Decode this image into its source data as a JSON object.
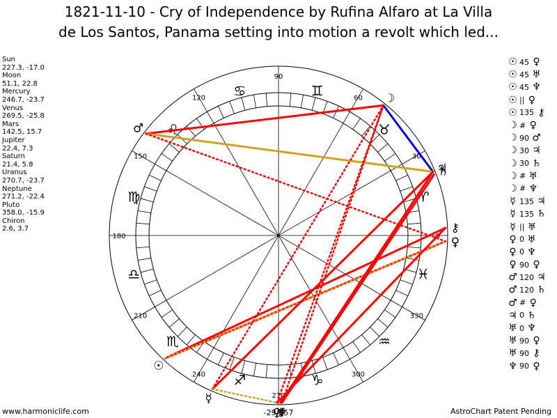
{
  "title": {
    "line1": "1821-11-10 - Cry of Independence by Rufina Alfaro at La Villa",
    "line2": "de Los Santos, Panama setting into motion a revolt which led..."
  },
  "planets": [
    {
      "name": "Sun",
      "values": "227.3, -17.0"
    },
    {
      "name": "Moon",
      "values": "51.1, 22.8"
    },
    {
      "name": "Mercury",
      "values": "246.7, -23.7"
    },
    {
      "name": "Venus",
      "values": "269.5, -25.8"
    },
    {
      "name": "Mars",
      "values": "142.5, 15.7"
    },
    {
      "name": "Jupiter",
      "values": "22.4, 7.3"
    },
    {
      "name": "Saturn",
      "values": "21.4, 5.8"
    },
    {
      "name": "Uranus",
      "values": "270.7, -23.7"
    },
    {
      "name": "Neptune",
      "values": "271.2, -22.4"
    },
    {
      "name": "Pluto",
      "values": "358.0, -15.9"
    },
    {
      "name": "Chiron",
      "values": "2.6, 3.7"
    }
  ],
  "aspects": [
    {
      "a": "☉",
      "v": "45",
      "b": "♀"
    },
    {
      "a": "☉",
      "v": "45",
      "b": "♅"
    },
    {
      "a": "☉",
      "v": "45",
      "b": "♆"
    },
    {
      "a": "☉",
      "v": "||",
      "b": "♀"
    },
    {
      "a": "☉",
      "v": "135",
      "b": "⚷"
    },
    {
      "a": "☽",
      "v": "#",
      "b": "♀"
    },
    {
      "a": "☽",
      "v": "90",
      "b": "♂"
    },
    {
      "a": "☽",
      "v": "30",
      "b": "♃"
    },
    {
      "a": "☽",
      "v": "30",
      "b": "♄"
    },
    {
      "a": "☽",
      "v": "#",
      "b": "♅"
    },
    {
      "a": "☽",
      "v": "#",
      "b": "♆"
    },
    {
      "a": "☿",
      "v": "135",
      "b": "♃"
    },
    {
      "a": "☿",
      "v": "135",
      "b": "♄"
    },
    {
      "a": "☿",
      "v": "||",
      "b": "♅"
    },
    {
      "a": "♀",
      "v": "0",
      "b": "♅"
    },
    {
      "a": "♀",
      "v": "0",
      "b": "♆"
    },
    {
      "a": "♀",
      "v": "90",
      "b": "♀"
    },
    {
      "a": "♂",
      "v": "120",
      "b": "♃"
    },
    {
      "a": "♂",
      "v": "120",
      "b": "♄"
    },
    {
      "a": "♂",
      "v": "#",
      "b": "♀"
    },
    {
      "a": "♃",
      "v": "0",
      "b": "♄"
    },
    {
      "a": "♅",
      "v": "0",
      "b": "♆"
    },
    {
      "a": "♅",
      "v": "90",
      "b": "♀"
    },
    {
      "a": "♅",
      "v": "90",
      "b": "⚷"
    },
    {
      "a": "♆",
      "v": "90",
      "b": "♀"
    }
  ],
  "wheel": {
    "degree_labels": [
      "90",
      "60",
      "30",
      "0",
      "330",
      "300",
      "270",
      "240",
      "210",
      "180",
      "150",
      "120"
    ],
    "bottom_label": "-29/357",
    "zodiac": [
      {
        "glyph": "♈",
        "lon": 15,
        "color": "#000000"
      },
      {
        "glyph": "♉",
        "lon": 45,
        "color": "#000000"
      },
      {
        "glyph": "♊",
        "lon": 75,
        "color": "#000000"
      },
      {
        "glyph": "♋",
        "lon": 105,
        "color": "#000000"
      },
      {
        "glyph": "♌",
        "lon": 135,
        "color": "#000000"
      },
      {
        "glyph": "♍",
        "lon": 165,
        "color": "#000000"
      },
      {
        "glyph": "♎",
        "lon": 195,
        "color": "#000000"
      },
      {
        "glyph": "♏",
        "lon": 225,
        "color": "#000000"
      },
      {
        "glyph": "♐",
        "lon": 255,
        "color": "#000000"
      },
      {
        "glyph": "♑",
        "lon": 285,
        "color": "#000000"
      },
      {
        "glyph": "♒",
        "lon": 315,
        "color": "#000000"
      },
      {
        "glyph": "♓",
        "lon": 345,
        "color": "#000000"
      }
    ],
    "bodies": [
      {
        "glyph": "☉",
        "lon": 227.3
      },
      {
        "glyph": "☽",
        "lon": 51.1
      },
      {
        "glyph": "☿",
        "lon": 246.7
      },
      {
        "glyph": "♀",
        "lon": 269.5
      },
      {
        "glyph": "♂",
        "lon": 142.5
      },
      {
        "glyph": "♃",
        "lon": 22.4
      },
      {
        "glyph": "♄",
        "lon": 21.4
      },
      {
        "glyph": "♅",
        "lon": 270.7
      },
      {
        "glyph": "♆",
        "lon": 271.2
      },
      {
        "glyph": "♀",
        "lon": 358.0
      },
      {
        "glyph": "⚷",
        "lon": 2.6
      }
    ],
    "aspect_lines": [
      {
        "from": 51.1,
        "to": 142.5,
        "color": "#ff0000",
        "style": "solid"
      },
      {
        "from": 51.1,
        "to": 22.4,
        "color": "#0000dd",
        "style": "solid"
      },
      {
        "from": 142.5,
        "to": 22.4,
        "color": "#d4a020",
        "style": "solid"
      },
      {
        "from": 142.5,
        "to": 358.0,
        "color": "#ff0000",
        "style": "dotted"
      },
      {
        "from": 227.3,
        "to": 2.6,
        "color": "#ff0000",
        "style": "solid"
      },
      {
        "from": 227.3,
        "to": 358.0,
        "color": "#ff0000",
        "style": "solid"
      },
      {
        "from": 227.3,
        "to": 358.0,
        "color": "#d4a020",
        "style": "dotted"
      },
      {
        "from": 246.7,
        "to": 22.4,
        "color": "#ff0000",
        "style": "solid"
      },
      {
        "from": 246.7,
        "to": 51.1,
        "color": "#ff0000",
        "style": "dotted"
      },
      {
        "from": 270.7,
        "to": 22.4,
        "color": "#ff0000",
        "style": "solid"
      },
      {
        "from": 271.2,
        "to": 21.4,
        "color": "#ff0000",
        "style": "solid"
      },
      {
        "from": 269.5,
        "to": 2.6,
        "color": "#ff0000",
        "style": "solid"
      },
      {
        "from": 269.5,
        "to": 51.1,
        "color": "#ff0000",
        "style": "dotted"
      },
      {
        "from": 271.2,
        "to": 51.1,
        "color": "#ff0000",
        "style": "dotted"
      },
      {
        "from": 246.7,
        "to": 269.5,
        "color": "#d4a020",
        "style": "dotted"
      }
    ]
  },
  "footer": {
    "left": "www.harmoniclife.com",
    "right": "AstroChart Patent Pending"
  }
}
